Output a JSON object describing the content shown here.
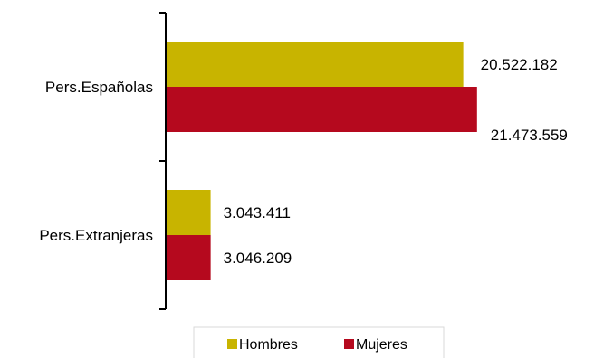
{
  "chart_data": {
    "type": "bar",
    "orientation": "horizontal",
    "categories": [
      "Pers.Españolas",
      "Pers.Extranjeras"
    ],
    "series": [
      {
        "name": "Hombres",
        "color": "#c8b400",
        "values": [
          20522182,
          3043411
        ],
        "labels": [
          "20.522.182",
          "3.043.411"
        ]
      },
      {
        "name": "Mujeres",
        "color": "#b5091e",
        "values": [
          21473559,
          3046209
        ],
        "labels": [
          "21.473.559",
          "3.046.209"
        ]
      }
    ],
    "xlim": [
      0,
      28000000
    ],
    "grid": false,
    "legend_position": "bottom"
  }
}
